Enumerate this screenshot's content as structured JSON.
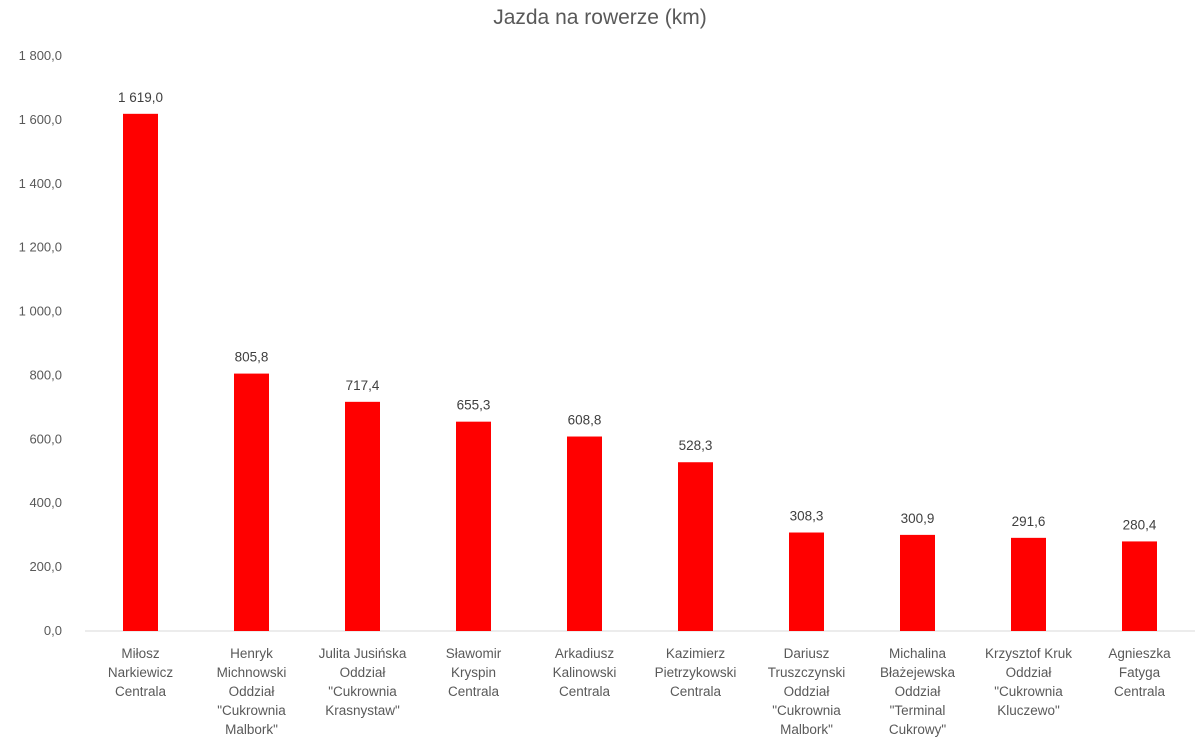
{
  "chart_data": {
    "type": "bar",
    "title": "Jazda na rowerze (km)",
    "xlabel": "",
    "ylabel": "",
    "ylim": [
      0,
      1800
    ],
    "yticks": [
      "0,0",
      "200,0",
      "400,0",
      "600,0",
      "800,0",
      "1 000,0",
      "1 200,0",
      "1 400,0",
      "1 600,0",
      "1 800,0"
    ],
    "grid": false,
    "legend": "none",
    "bar_color": "#ff0000",
    "categories": [
      [
        "Miłosz",
        "Narkiewicz",
        "Centrala"
      ],
      [
        "Henryk",
        "Michnowski",
        "Oddział",
        "\"Cukrownia",
        "Malbork\""
      ],
      [
        "Julita Jusińska",
        "Oddział",
        "\"Cukrownia",
        "Krasnystaw\""
      ],
      [
        "Sławomir",
        "Kryspin",
        "Centrala"
      ],
      [
        "Arkadiusz",
        "Kalinowski",
        "Centrala"
      ],
      [
        "Kazimierz",
        "Pietrzykowski",
        "Centrala"
      ],
      [
        "Dariusz",
        "Truszczynski",
        "Oddział",
        "\"Cukrownia",
        "Malbork\""
      ],
      [
        "Michalina",
        "Błażejewska",
        "Oddział",
        "\"Terminal",
        "Cukrowy\""
      ],
      [
        "Krzysztof Kruk",
        "Oddział",
        "\"Cukrownia",
        "Kluczewo\""
      ],
      [
        "Agnieszka",
        "Fatyga",
        "Centrala"
      ]
    ],
    "values": [
      1619.0,
      805.8,
      717.4,
      655.3,
      608.8,
      528.3,
      308.3,
      300.9,
      291.6,
      280.4
    ],
    "value_labels": [
      "1 619,0",
      "805,8",
      "717,4",
      "655,3",
      "608,8",
      "528,3",
      "308,3",
      "300,9",
      "291,6",
      "280,4"
    ]
  }
}
